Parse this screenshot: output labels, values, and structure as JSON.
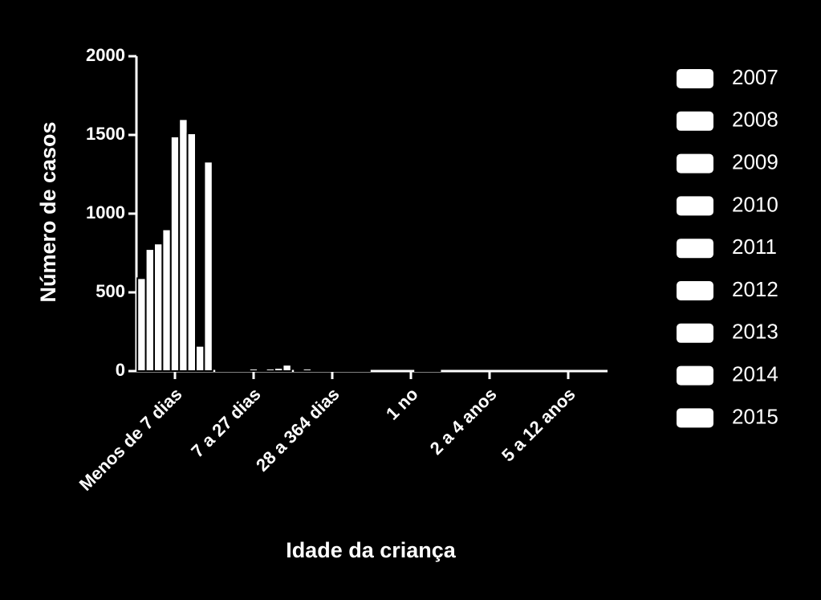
{
  "chart_data": {
    "type": "bar",
    "x_label": "Idade da criança",
    "y_label": "Número de casos",
    "categories": [
      "Menos de 7 dias",
      "7 a 27 dias",
      "28 a 364 dias",
      "1 no",
      "2 a 4 anos",
      "5 a 12 anos"
    ],
    "series": [
      {
        "name": "2007",
        "color": "#ffffff",
        "values": [
          590,
          5,
          10,
          0,
          0,
          0
        ]
      },
      {
        "name": "2008",
        "color": "#ffffff",
        "values": [
          775,
          10,
          15,
          0,
          0,
          0
        ]
      },
      {
        "name": "2009",
        "color": "#ffffff",
        "values": [
          810,
          10,
          10,
          0,
          0,
          0
        ]
      },
      {
        "name": "2010",
        "color": "#ffffff",
        "values": [
          900,
          10,
          10,
          0,
          0,
          0
        ]
      },
      {
        "name": "2011",
        "color": "#ffffff",
        "values": [
          1490,
          15,
          10,
          0,
          0,
          0
        ]
      },
      {
        "name": "2012",
        "color": "#ffffff",
        "values": [
          1600,
          10,
          10,
          5,
          0,
          0
        ]
      },
      {
        "name": "2013",
        "color": "#ffffff",
        "values": [
          1510,
          15,
          10,
          5,
          0,
          0
        ]
      },
      {
        "name": "2014",
        "color": "#ffffff",
        "values": [
          160,
          20,
          10,
          5,
          0,
          0
        ]
      },
      {
        "name": "2015",
        "color": "#ffffff",
        "values": [
          1330,
          40,
          10,
          0,
          0,
          0
        ]
      }
    ],
    "ylim": [
      0,
      2000
    ],
    "yticks": [
      0,
      500,
      1000,
      1500,
      2000
    ]
  }
}
